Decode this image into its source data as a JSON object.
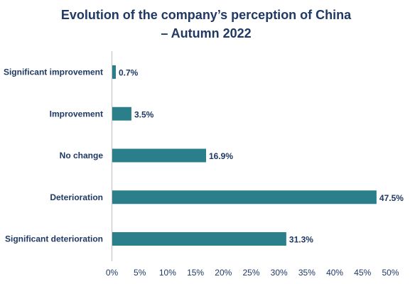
{
  "chart_data": {
    "type": "bar",
    "orientation": "horizontal",
    "title_lines": [
      "Evolution of the company’s perception of China",
      "– Autumn 2022"
    ],
    "categories": [
      "Significant improvement",
      "Improvement",
      "No change",
      "Deterioration",
      "Significant deterioration"
    ],
    "values": [
      0.7,
      3.5,
      16.9,
      47.5,
      31.3
    ],
    "value_labels": [
      "0.7%",
      "3.5%",
      "16.9%",
      "47.5%",
      "31.3%"
    ],
    "xlim": [
      0,
      50
    ],
    "xticks": [
      0,
      5,
      10,
      15,
      20,
      25,
      30,
      35,
      40,
      45,
      50
    ],
    "xtick_labels": [
      "0%",
      "5%",
      "10%",
      "15%",
      "20%",
      "25%",
      "30%",
      "35%",
      "40%",
      "45%",
      "50%"
    ],
    "bar_color": "#2a7f8a",
    "text_color": "#1f3864",
    "axis_color": "#bfbfbf",
    "grid": false,
    "legend": "none"
  }
}
